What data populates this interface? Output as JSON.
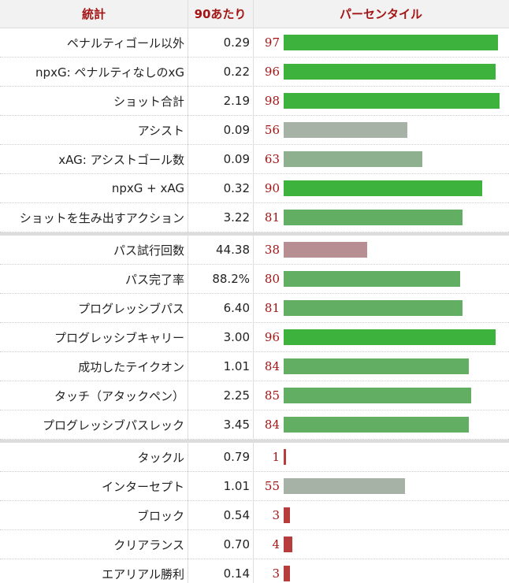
{
  "header": {
    "stat": "統計",
    "per90": "90あたり",
    "percentile": "パーセンタイル"
  },
  "colors": {
    "top": "#3db23d",
    "good": "#62ae62",
    "mid_green": "#8fb08f",
    "neutral": "#a7b2a7",
    "below": "#b78f93",
    "low": "#b73c3c",
    "accent_text": "#a31515"
  },
  "chart_data": {
    "type": "bar",
    "orientation": "horizontal",
    "xlim": [
      0,
      100
    ],
    "columns": [
      "統計",
      "90あたり",
      "パーセンタイル"
    ],
    "groups": [
      {
        "rows": [
          {
            "label": "ペナルティゴール以外",
            "per90": "0.29",
            "percentile": 97
          },
          {
            "label": "npxG: ペナルティなしのxG",
            "per90": "0.22",
            "percentile": 96
          },
          {
            "label": "ショット合計",
            "per90": "2.19",
            "percentile": 98
          },
          {
            "label": "アシスト",
            "per90": "0.09",
            "percentile": 56
          },
          {
            "label": "xAG: アシストゴール数",
            "per90": "0.09",
            "percentile": 63
          },
          {
            "label": "npxG + xAG",
            "per90": "0.32",
            "percentile": 90
          },
          {
            "label": "ショットを生み出すアクション",
            "per90": "3.22",
            "percentile": 81
          }
        ]
      },
      {
        "rows": [
          {
            "label": "パス試行回数",
            "per90": "44.38",
            "percentile": 38
          },
          {
            "label": "パス完了率",
            "per90": "88.2%",
            "percentile": 80
          },
          {
            "label": "プログレッシブパス",
            "per90": "6.40",
            "percentile": 81
          },
          {
            "label": "プログレッシブキャリー",
            "per90": "3.00",
            "percentile": 96
          },
          {
            "label": "成功したテイクオン",
            "per90": "1.01",
            "percentile": 84
          },
          {
            "label": "タッチ（アタックペン）",
            "per90": "2.25",
            "percentile": 85
          },
          {
            "label": "プログレッシブパスレック",
            "per90": "3.45",
            "percentile": 84
          }
        ]
      },
      {
        "rows": [
          {
            "label": "タックル",
            "per90": "0.79",
            "percentile": 1
          },
          {
            "label": "インターセプト",
            "per90": "1.01",
            "percentile": 55
          },
          {
            "label": "ブロック",
            "per90": "0.54",
            "percentile": 3
          },
          {
            "label": "クリアランス",
            "per90": "0.70",
            "percentile": 4
          },
          {
            "label": "エアリアル勝利",
            "per90": "0.14",
            "percentile": 3
          }
        ]
      }
    ]
  }
}
